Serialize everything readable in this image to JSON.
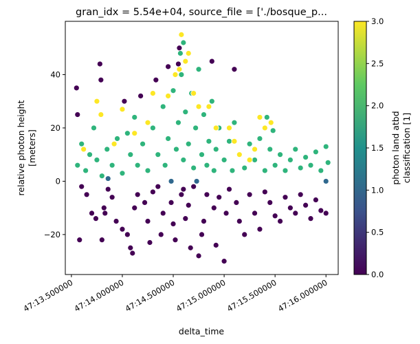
{
  "chart_data": {
    "type": "scatter",
    "title": "gran_idx = 5.54e+04, source_file = ['./bosque_p...",
    "xlabel": "delta_time",
    "ylabel_lines": [
      "relative photon height",
      "[meters]"
    ],
    "xlim": [
      "47:13.44",
      "47:16.12"
    ],
    "ylim": [
      -35,
      60
    ],
    "x_ticks": [
      {
        "label": "47:13.500000",
        "value": 13.5
      },
      {
        "label": "47:14.000000",
        "value": 14.0
      },
      {
        "label": "47:14.500000",
        "value": 14.5
      },
      {
        "label": "47:15.000000",
        "value": 15.0
      },
      {
        "label": "47:15.500000",
        "value": 15.5
      },
      {
        "label": "47:16.000000",
        "value": 16.0
      }
    ],
    "y_ticks": [
      -20,
      0,
      20,
      40
    ],
    "grid": false,
    "marker_edge_color": "#ffffff",
    "colorbar": {
      "label_lines": [
        "photon land atbd",
        "classification [1]"
      ],
      "range": [
        0,
        3
      ],
      "colormap": "viridis",
      "ticks": [
        "0.0",
        "0.5",
        "1.0",
        "1.5",
        "2.0",
        "2.5",
        "3.0"
      ],
      "colors": [
        "#440154",
        "#3b528b",
        "#21918c",
        "#5ec962",
        "#fde725"
      ]
    },
    "classes": [
      {
        "value": 0,
        "color": "#440154"
      },
      {
        "value": 1,
        "color": "#30688e"
      },
      {
        "value": 2,
        "color": "#2fb47c"
      },
      {
        "value": 3,
        "color": "#fde725"
      }
    ],
    "series": [
      {
        "class": 0,
        "points": [
          [
            13.55,
            35
          ],
          [
            13.56,
            25
          ],
          [
            13.6,
            -2
          ],
          [
            13.65,
            -5
          ],
          [
            13.7,
            -12
          ],
          [
            13.74,
            -14
          ],
          [
            13.78,
            44
          ],
          [
            13.79,
            38
          ],
          [
            13.8,
            -22
          ],
          [
            13.82,
            -10
          ],
          [
            13.86,
            -3
          ],
          [
            13.9,
            -6
          ],
          [
            13.94,
            -15
          ],
          [
            14.0,
            -18
          ],
          [
            14.02,
            30
          ],
          [
            14.05,
            -20
          ],
          [
            14.08,
            -25
          ],
          [
            14.12,
            -10
          ],
          [
            14.15,
            -5
          ],
          [
            14.18,
            32
          ],
          [
            14.22,
            -8
          ],
          [
            14.25,
            -15
          ],
          [
            14.3,
            -4
          ],
          [
            14.33,
            38
          ],
          [
            14.35,
            -2
          ],
          [
            14.38,
            -20
          ],
          [
            14.4,
            -12
          ],
          [
            14.45,
            43
          ],
          [
            14.48,
            -8
          ],
          [
            14.5,
            -16
          ],
          [
            14.52,
            -22
          ],
          [
            14.55,
            44
          ],
          [
            14.56,
            50
          ],
          [
            14.58,
            -5
          ],
          [
            14.6,
            -3
          ],
          [
            14.62,
            -14
          ],
          [
            14.65,
            -9
          ],
          [
            14.7,
            -2
          ],
          [
            14.75,
            -28
          ],
          [
            14.78,
            -20
          ],
          [
            14.8,
            -15
          ],
          [
            14.83,
            -5
          ],
          [
            14.88,
            45
          ],
          [
            14.9,
            -10
          ],
          [
            14.92,
            -24
          ],
          [
            14.95,
            -6
          ],
          [
            15.0,
            -30
          ],
          [
            15.02,
            -12
          ],
          [
            15.05,
            -3
          ],
          [
            15.1,
            42
          ],
          [
            15.12,
            -8
          ],
          [
            15.15,
            -15
          ],
          [
            15.2,
            -20
          ],
          [
            15.25,
            -5
          ],
          [
            15.3,
            -12
          ],
          [
            15.35,
            -18
          ],
          [
            15.4,
            -4
          ],
          [
            15.45,
            -8
          ],
          [
            15.5,
            -13
          ],
          [
            15.55,
            -15
          ],
          [
            15.6,
            -6
          ],
          [
            15.65,
            -10
          ],
          [
            15.7,
            -12
          ],
          [
            15.75,
            -5
          ],
          [
            15.8,
            -9
          ],
          [
            15.85,
            -14
          ],
          [
            15.9,
            -7
          ],
          [
            15.95,
            -11
          ],
          [
            16.0,
            -12
          ],
          [
            14.1,
            -27
          ],
          [
            14.27,
            -23
          ],
          [
            14.67,
            -25
          ],
          [
            13.58,
            -22
          ],
          [
            13.83,
            -12
          ]
        ]
      },
      {
        "class": 2,
        "points": [
          [
            13.56,
            6
          ],
          [
            13.6,
            14
          ],
          [
            13.64,
            4
          ],
          [
            13.68,
            10
          ],
          [
            13.72,
            20
          ],
          [
            13.75,
            8
          ],
          [
            13.8,
            2
          ],
          [
            13.85,
            12
          ],
          [
            13.9,
            6
          ],
          [
            13.95,
            16
          ],
          [
            14.0,
            3
          ],
          [
            14.05,
            18
          ],
          [
            14.08,
            10
          ],
          [
            14.12,
            24
          ],
          [
            14.15,
            6
          ],
          [
            14.2,
            14
          ],
          [
            14.25,
            4
          ],
          [
            14.3,
            20
          ],
          [
            14.35,
            10
          ],
          [
            14.4,
            28
          ],
          [
            14.42,
            6
          ],
          [
            14.45,
            16
          ],
          [
            14.5,
            34
          ],
          [
            14.53,
            12
          ],
          [
            14.55,
            22
          ],
          [
            14.58,
            40
          ],
          [
            14.6,
            8
          ],
          [
            14.62,
            26
          ],
          [
            14.65,
            14
          ],
          [
            14.68,
            33
          ],
          [
            14.7,
            5
          ],
          [
            14.72,
            20
          ],
          [
            14.75,
            42
          ],
          [
            14.78,
            10
          ],
          [
            14.8,
            25
          ],
          [
            14.83,
            6
          ],
          [
            14.85,
            15
          ],
          [
            14.88,
            30
          ],
          [
            14.9,
            4
          ],
          [
            14.92,
            12
          ],
          [
            14.95,
            20
          ],
          [
            15.0,
            8
          ],
          [
            15.05,
            15
          ],
          [
            15.08,
            4
          ],
          [
            15.1,
            22
          ],
          [
            15.15,
            10
          ],
          [
            15.2,
            5
          ],
          [
            15.25,
            14
          ],
          [
            15.3,
            8
          ],
          [
            15.35,
            16
          ],
          [
            15.4,
            4
          ],
          [
            15.45,
            12
          ],
          [
            15.5,
            6
          ],
          [
            15.55,
            10
          ],
          [
            15.6,
            4
          ],
          [
            15.65,
            8
          ],
          [
            15.7,
            12
          ],
          [
            15.75,
            5
          ],
          [
            15.8,
            9
          ],
          [
            15.85,
            6
          ],
          [
            15.9,
            11
          ],
          [
            15.95,
            4
          ],
          [
            16.0,
            13
          ],
          [
            16.02,
            7
          ],
          [
            15.42,
            24
          ],
          [
            15.48,
            19
          ],
          [
            14.57,
            48
          ],
          [
            14.6,
            52
          ]
        ]
      },
      {
        "class": 3,
        "points": [
          [
            13.62,
            12
          ],
          [
            13.75,
            30
          ],
          [
            13.79,
            25
          ],
          [
            14.0,
            27
          ],
          [
            14.25,
            22
          ],
          [
            14.3,
            33
          ],
          [
            14.45,
            32
          ],
          [
            14.52,
            40
          ],
          [
            14.56,
            42
          ],
          [
            14.58,
            55
          ],
          [
            14.62,
            45
          ],
          [
            14.65,
            48
          ],
          [
            14.7,
            33
          ],
          [
            14.75,
            28
          ],
          [
            14.85,
            28
          ],
          [
            14.92,
            20
          ],
          [
            15.05,
            20
          ],
          [
            15.1,
            15
          ],
          [
            15.15,
            10
          ],
          [
            15.25,
            8
          ],
          [
            15.3,
            12
          ],
          [
            15.35,
            24
          ],
          [
            15.4,
            20
          ],
          [
            14.12,
            18
          ],
          [
            13.92,
            14
          ],
          [
            15.46,
            22
          ]
        ]
      },
      {
        "class": 1,
        "points": [
          [
            13.86,
            1
          ],
          [
            14.48,
            0
          ],
          [
            14.73,
            0
          ],
          [
            16.0,
            0
          ]
        ]
      }
    ]
  }
}
